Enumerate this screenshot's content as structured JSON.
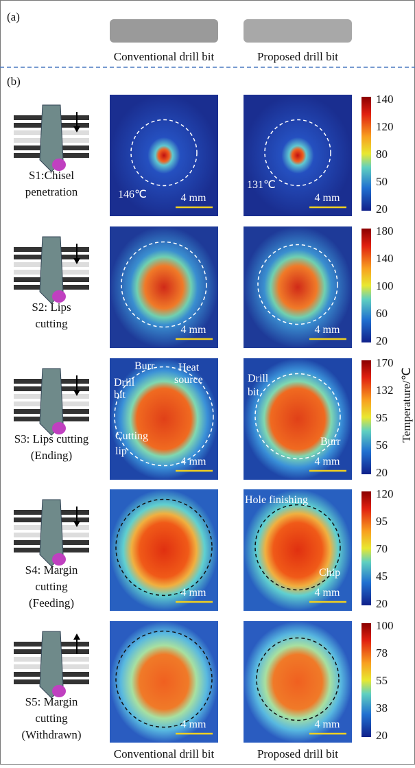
{
  "panel_a": {
    "label": "(a)",
    "captions": [
      "Conventional drill bit",
      "Proposed drill bit"
    ]
  },
  "panel_b": {
    "label": "(b)",
    "colorbar_title": "Temperature/℃",
    "footer": [
      "Conventional drill bit",
      "Proposed drill bit"
    ],
    "rows": [
      {
        "stage": [
          "S1:Chisel",
          "penetration"
        ],
        "ticks": [
          "140",
          "120",
          "80",
          "50",
          "20"
        ],
        "scale": "4 mm",
        "left_notes": [
          "146℃"
        ],
        "right_notes": [
          "131℃"
        ]
      },
      {
        "stage": [
          "S2: Lips",
          "cutting"
        ],
        "ticks": [
          "180",
          "140",
          "100",
          "60",
          "20"
        ],
        "scale": "4 mm",
        "left_notes": [],
        "right_notes": []
      },
      {
        "stage": [
          "S3: Lips cutting",
          "(Ending)"
        ],
        "ticks": [
          "170",
          "132",
          "95",
          "56",
          "20"
        ],
        "scale": "4 mm",
        "left_notes": [
          "Burr",
          "Drill",
          "bit",
          "Heat",
          "source",
          "Cutting",
          "lip"
        ],
        "right_notes": [
          "Drill",
          "bit",
          "Burr"
        ]
      },
      {
        "stage": [
          "S4: Margin",
          "cutting",
          "(Feeding)"
        ],
        "ticks": [
          "120",
          "95",
          "70",
          "45",
          "20"
        ],
        "scale": "4 mm",
        "left_notes": [],
        "right_notes": [
          "Hole finishing",
          "Chip"
        ]
      },
      {
        "stage": [
          "S5: Margin",
          "cutting",
          "(Withdrawn)"
        ],
        "ticks": [
          "100",
          "78",
          "55",
          "38",
          "20"
        ],
        "scale": "4 mm",
        "left_notes": [],
        "right_notes": []
      }
    ]
  }
}
